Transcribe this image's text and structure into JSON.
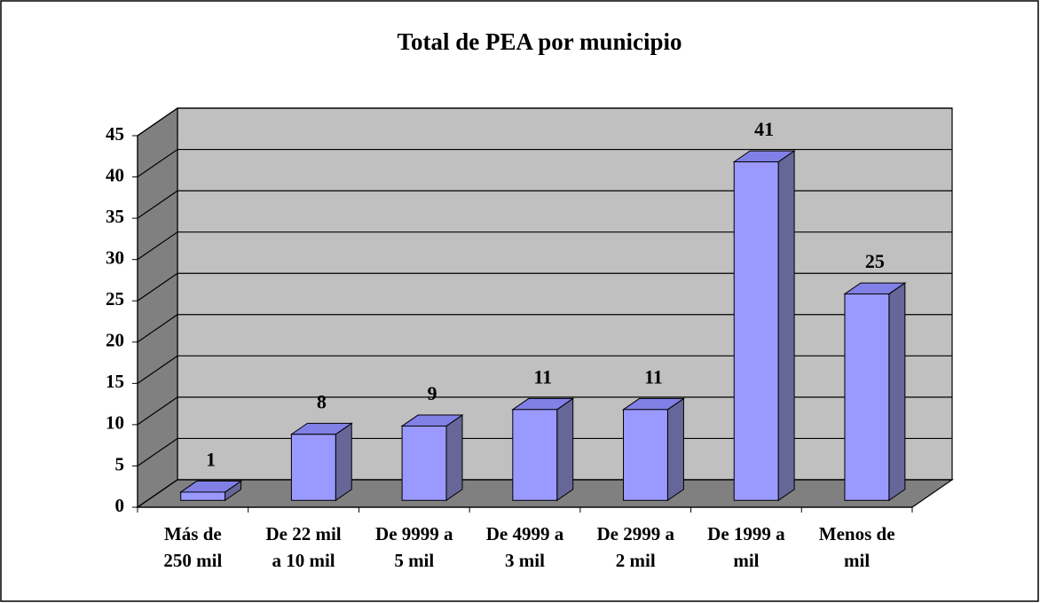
{
  "chart_data": {
    "type": "bar3d",
    "title": "Total de PEA por municipio",
    "categories": [
      [
        "Más de",
        "250  mil"
      ],
      [
        "De 22 mil",
        "a 10 mil"
      ],
      [
        "De 9999 a",
        "5 mil"
      ],
      [
        "De 4999 a",
        "3 mil"
      ],
      [
        "De 2999 a",
        "2 mil"
      ],
      [
        "De 1999 a",
        "mil"
      ],
      [
        "Menos de",
        "mil"
      ]
    ],
    "values": [
      1,
      8,
      9,
      11,
      11,
      41,
      25
    ],
    "color": "#9999ff",
    "ylim": [
      0,
      45
    ],
    "yticks": [
      0,
      5,
      10,
      15,
      20,
      25,
      30,
      35,
      40,
      45
    ],
    "grid": true
  }
}
